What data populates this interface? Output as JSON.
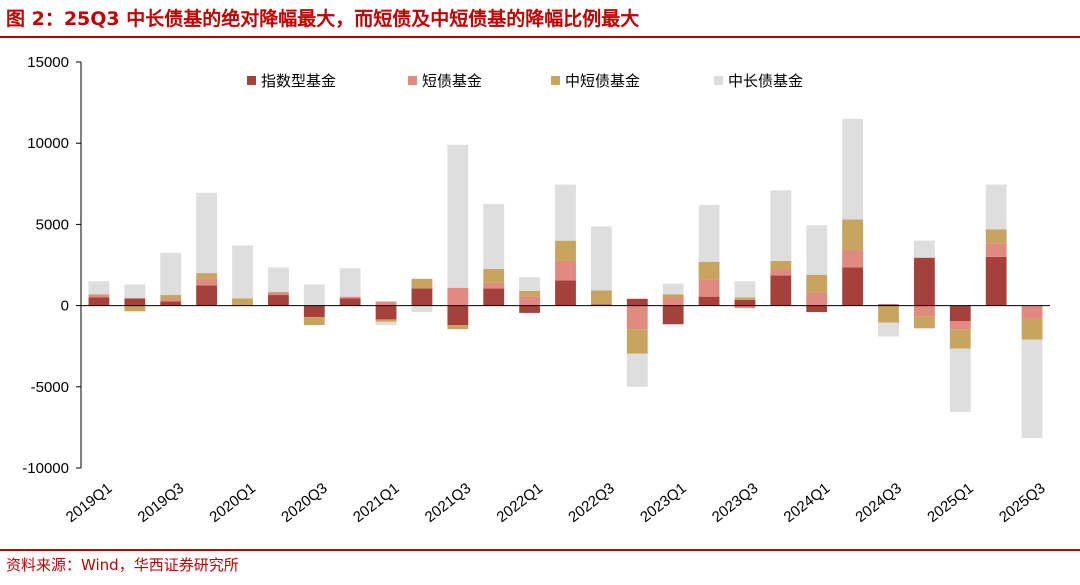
{
  "title": "图 2：25Q3 中长债基的绝对降幅最大，而短债及中短债基的降幅比例最大",
  "source": "资料来源：Wind，华西证券研究所",
  "colors": {
    "accent": "#c00000",
    "index_fund": "#a5413a",
    "short_bond": "#e08a80",
    "mid_short_bond": "#c8a45e",
    "mid_long_bond": "#dedede"
  },
  "chart_data": {
    "type": "bar",
    "stacked": true,
    "title": "",
    "xlabel": "",
    "ylabel": "",
    "ylim": [
      -10000,
      15000
    ],
    "yticks": [
      15000,
      10000,
      5000,
      0,
      -5000,
      -10000
    ],
    "legend_position": "top",
    "grid": false,
    "categories": [
      "2019Q1",
      "2019Q2",
      "2019Q3",
      "2019Q4",
      "2020Q1",
      "2020Q2",
      "2020Q3",
      "2020Q4",
      "2021Q1",
      "2021Q2",
      "2021Q3",
      "2021Q4",
      "2022Q1",
      "2022Q2",
      "2022Q3",
      "2022Q4",
      "2023Q1",
      "2023Q2",
      "2023Q3",
      "2023Q4",
      "2024Q1",
      "2024Q2",
      "2024Q3",
      "2024Q4",
      "2025Q1",
      "2025Q2",
      "2025Q3"
    ],
    "x_tick_labels": [
      "2019Q1",
      "2019Q3",
      "2020Q1",
      "2020Q3",
      "2021Q1",
      "2021Q3",
      "2022Q1",
      "2022Q3",
      "2023Q1",
      "2023Q3",
      "2024Q1",
      "2024Q3",
      "2025Q1",
      "2025Q3"
    ],
    "series": [
      {
        "name": "指数型基金",
        "color": "#a5413a",
        "values": [
          500,
          450,
          250,
          1250,
          0,
          650,
          -700,
          450,
          -850,
          1050,
          -1200,
          1050,
          -450,
          1550,
          80,
          420,
          -1150,
          550,
          350,
          1850,
          -400,
          2350,
          80,
          2950,
          -950,
          3000,
          0
        ]
      },
      {
        "name": "短债基金",
        "color": "#e08a80",
        "values": [
          150,
          0,
          150,
          400,
          0,
          150,
          0,
          100,
          250,
          0,
          1100,
          350,
          550,
          1200,
          0,
          -1450,
          500,
          1050,
          -150,
          400,
          800,
          1100,
          0,
          -650,
          -500,
          800,
          -800
        ]
      },
      {
        "name": "中短债基金",
        "color": "#c8a45e",
        "values": [
          50,
          -350,
          250,
          350,
          450,
          50,
          -500,
          0,
          -150,
          600,
          -250,
          850,
          350,
          1250,
          850,
          -1500,
          200,
          1100,
          150,
          500,
          1100,
          1850,
          -1050,
          -750,
          -1200,
          900,
          -1300
        ]
      },
      {
        "name": "中长债基金",
        "color": "#dedede",
        "values": [
          800,
          850,
          2600,
          4950,
          3250,
          1500,
          1300,
          1750,
          -200,
          -400,
          8800,
          4000,
          850,
          3450,
          3950,
          -2050,
          650,
          3500,
          1000,
          4350,
          3050,
          6200,
          -850,
          1050,
          -3900,
          2750,
          -6050
        ]
      }
    ]
  }
}
